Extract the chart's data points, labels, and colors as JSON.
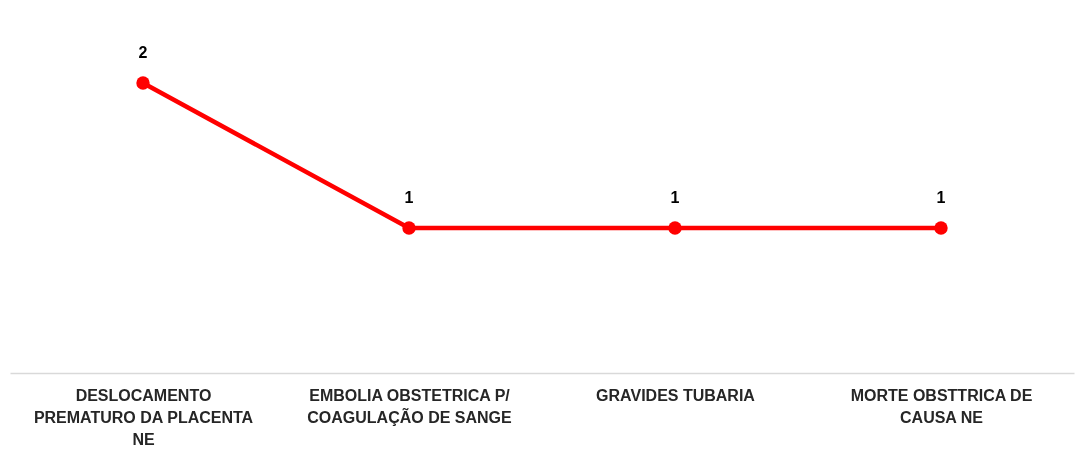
{
  "chart_data": {
    "type": "line",
    "categories": [
      "DESLOCAMENTO PREMATURO DA PLACENTA NE",
      "EMBOLIA OBSTETRICA P/ COAGULAÇÃO DE SANGE",
      "GRAVIDES TUBARIA",
      "MORTE OBSTTRICA DE CAUSA NE"
    ],
    "series": [
      {
        "color": "#ff0000",
        "values": [
          2,
          1,
          1,
          1
        ]
      }
    ],
    "data_labels": true,
    "marker": "circle",
    "line_style": "solid",
    "grid": false,
    "tick_labels": "x"
  }
}
